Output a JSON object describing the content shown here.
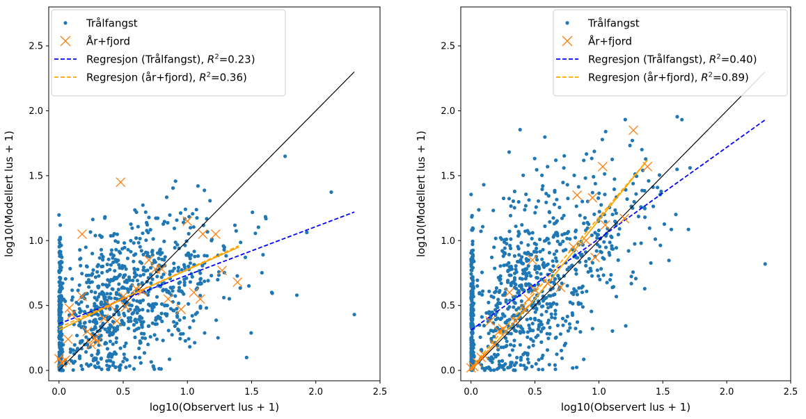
{
  "chart_data": [
    {
      "type": "scatter",
      "xlabel": "log10(Observert lus + 1)",
      "ylabel": "log10(Modellert lus + 1)",
      "xlim": [
        -0.08,
        2.5
      ],
      "ylim": [
        -0.08,
        2.8
      ],
      "xticks": [
        "0.0",
        "0.5",
        "1.0",
        "1.5",
        "2.0",
        "2.5"
      ],
      "yticks": [
        "0.0",
        "0.5",
        "1.0",
        "1.5",
        "2.0",
        "2.5"
      ],
      "legend_position": "upper-left",
      "legend": [
        {
          "label": "Trålfangst",
          "kind": "dot",
          "color": "#1f77b4"
        },
        {
          "label": "År+fjord",
          "kind": "x",
          "color": "#ff7f0e"
        },
        {
          "label_prefix": "Regresjon (Trålfangst),",
          "r2_text": "=0.23)",
          "kind": "dashed",
          "color": "#0000ff"
        },
        {
          "label_prefix": "Regresjon (år+fjord),",
          "r2_text": "=0.36)",
          "kind": "dashed",
          "color": "#ffa500"
        }
      ],
      "identity_line": {
        "x": [
          0.0,
          2.3
        ],
        "y": [
          0.0,
          2.3
        ],
        "color": "#000000"
      },
      "regression_lines": [
        {
          "name": "Regresjon (Trålfangst)",
          "r2": 0.23,
          "x": [
            0.0,
            2.3
          ],
          "y": [
            0.36,
            1.22
          ],
          "color": "#0000ff",
          "style": "dashed"
        },
        {
          "name": "Regresjon (år+fjord)",
          "r2": 0.36,
          "x": [
            0.0,
            1.4
          ],
          "y": [
            0.33,
            0.96
          ],
          "color": "#ffa500",
          "style": "dashed"
        }
      ],
      "fit_segments": [
        {
          "x": [
            0.0,
            0.6,
            1.4
          ],
          "y": [
            0.31,
            0.6,
            0.95
          ],
          "color": "#ffa500"
        }
      ],
      "trawl_points": {
        "seed": 11,
        "count": 1000,
        "observations_x_range": [
          0.0,
          2.3
        ],
        "slope": 0.37,
        "intercept": 0.36,
        "spread": 0.3,
        "x_zero_fraction": 0.22,
        "color": "#1f77b4"
      },
      "year_fjord_points": [
        [
          0.0,
          0.09
        ],
        [
          0.02,
          0.06
        ],
        [
          0.05,
          0.08
        ],
        [
          0.07,
          0.24
        ],
        [
          0.08,
          0.48
        ],
        [
          0.1,
          0.43
        ],
        [
          0.18,
          1.05
        ],
        [
          0.18,
          0.57
        ],
        [
          0.22,
          0.3
        ],
        [
          0.25,
          0.2
        ],
        [
          0.28,
          0.25
        ],
        [
          0.3,
          0.22
        ],
        [
          0.35,
          0.4
        ],
        [
          0.4,
          0.5
        ],
        [
          0.45,
          0.38
        ],
        [
          0.48,
          1.45
        ],
        [
          0.5,
          0.57
        ],
        [
          0.52,
          0.49
        ],
        [
          0.6,
          0.63
        ],
        [
          0.65,
          0.61
        ],
        [
          0.7,
          0.85
        ],
        [
          0.75,
          0.78
        ],
        [
          0.8,
          0.78
        ],
        [
          0.85,
          0.55
        ],
        [
          0.95,
          0.47
        ],
        [
          1.0,
          1.15
        ],
        [
          1.05,
          0.6
        ],
        [
          1.1,
          0.55
        ],
        [
          1.12,
          1.05
        ],
        [
          1.22,
          1.05
        ],
        [
          1.27,
          0.77
        ],
        [
          1.39,
          0.68
        ]
      ]
    },
    {
      "type": "scatter",
      "xlabel": "log10(Observert lus + 1)",
      "ylabel": "log10(Modellert lus + 1)",
      "xlim": [
        -0.08,
        2.5
      ],
      "ylim": [
        -0.08,
        2.8
      ],
      "xticks": [
        "0.0",
        "0.5",
        "1.0",
        "1.5",
        "2.0",
        "2.5"
      ],
      "yticks": [
        "0.0",
        "0.5",
        "1.0",
        "1.5",
        "2.0",
        "2.5"
      ],
      "legend_position": "upper-right",
      "legend": [
        {
          "label": "Trålfangst",
          "kind": "dot",
          "color": "#1f77b4"
        },
        {
          "label": "År+fjord",
          "kind": "x",
          "color": "#ff7f0e"
        },
        {
          "label_prefix": "Regresjon (Trålfangst),",
          "r2_text": "=0.40)",
          "kind": "dashed",
          "color": "#0000ff"
        },
        {
          "label_prefix": "Regresjon (år+fjord),",
          "r2_text": "=0.89)",
          "kind": "dashed",
          "color": "#ffa500"
        }
      ],
      "identity_line": {
        "x": [
          0.0,
          2.3
        ],
        "y": [
          0.0,
          2.3
        ],
        "color": "#000000"
      },
      "regression_lines": [
        {
          "name": "Regresjon (Trålfangst)",
          "r2": 0.4,
          "x": [
            0.0,
            2.3
          ],
          "y": [
            0.31,
            1.93
          ],
          "color": "#0000ff",
          "style": "dashed"
        },
        {
          "name": "Regresjon (år+fjord)",
          "r2": 0.89,
          "x": [
            0.0,
            1.38
          ],
          "y": [
            0.02,
            1.62
          ],
          "color": "#ffa500",
          "style": "dashed"
        }
      ],
      "fit_segments": [
        {
          "x": [
            0.0,
            0.5,
            1.38
          ],
          "y": [
            0.0,
            0.55,
            1.62
          ],
          "color": "#ffa500"
        }
      ],
      "trawl_points": {
        "seed": 29,
        "count": 1000,
        "observations_x_range": [
          0.0,
          2.3
        ],
        "slope": 0.72,
        "intercept": 0.28,
        "spread": 0.38,
        "x_zero_fraction": 0.22,
        "color": "#1f77b4"
      },
      "year_fjord_points": [
        [
          0.0,
          0.02
        ],
        [
          0.02,
          0.03
        ],
        [
          0.05,
          0.06
        ],
        [
          0.08,
          0.1
        ],
        [
          0.1,
          0.12
        ],
        [
          0.15,
          0.38
        ],
        [
          0.18,
          0.2
        ],
        [
          0.22,
          0.3
        ],
        [
          0.25,
          0.32
        ],
        [
          0.3,
          0.6
        ],
        [
          0.35,
          0.38
        ],
        [
          0.42,
          0.47
        ],
        [
          0.45,
          0.55
        ],
        [
          0.48,
          0.85
        ],
        [
          0.5,
          0.62
        ],
        [
          0.6,
          0.67
        ],
        [
          0.7,
          0.64
        ],
        [
          0.8,
          0.95
        ],
        [
          0.83,
          1.35
        ],
        [
          0.9,
          1.0
        ],
        [
          0.95,
          1.33
        ],
        [
          0.97,
          0.87
        ],
        [
          1.03,
          1.57
        ],
        [
          1.05,
          1.12
        ],
        [
          1.2,
          1.17
        ],
        [
          1.27,
          1.85
        ],
        [
          1.38,
          1.57
        ]
      ]
    }
  ]
}
